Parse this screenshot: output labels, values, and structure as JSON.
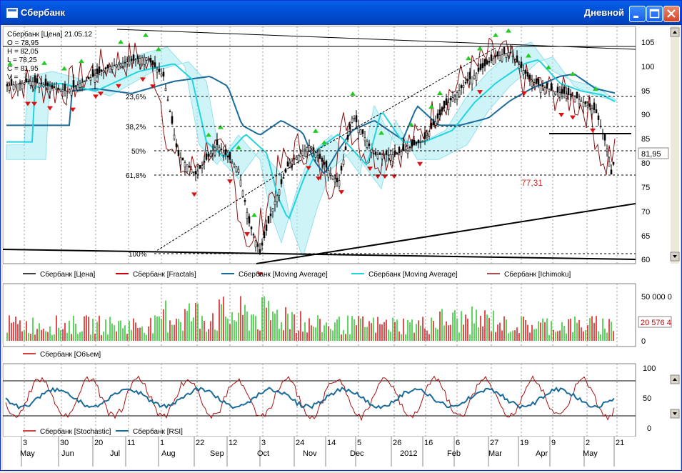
{
  "window": {
    "title": "Сбербанк",
    "interval": "Дневной",
    "buttons": [
      "minimize-button",
      "maximize-button",
      "close-button"
    ]
  },
  "price_panel": {
    "info_lines": [
      "Сбербанк [Цена] 21.05.12",
      "O = 78,95",
      "H = 82,05",
      "L = 78,25",
      "C = 81,95",
      "V = "
    ],
    "y_ticks": [
      "105",
      "100",
      "95",
      "90",
      "85",
      "80",
      "75",
      "70",
      "65",
      "60"
    ],
    "last_price": "81,95",
    "annotation": "77,31",
    "fib_labels": [
      "23,6%",
      "38,2%",
      "50%",
      "61,8%",
      "100%"
    ],
    "colors": {
      "up": "#000000",
      "down": "#000000",
      "fractal_up": "#22cc22",
      "fractal_down": "#dd1111",
      "ma_slow": "#1a6b9a",
      "ma_fast": "#20d4e0",
      "ichimoku": "#8b1414",
      "cloud": "#5fd4e8"
    }
  },
  "legend_price": [
    {
      "label": "Сбербанк [Цена]",
      "color": "#000000"
    },
    {
      "label": "Сбербанк [Fractals]",
      "color": "#cc0000"
    },
    {
      "label": "Сбербанк [Moving Average]",
      "color": "#1a6b9a"
    },
    {
      "label": "Сбербанк [Moving Average]",
      "color": "#20d4e0"
    },
    {
      "label": "Сбербанк [Ichimoku]",
      "color": "#8b1414"
    }
  ],
  "volume_panel": {
    "y_ticks": [
      "50 000 0",
      "0"
    ],
    "last_value": "20 576 4",
    "legend": {
      "label": "Сбербанк [Объем]",
      "color": "#cc0000"
    }
  },
  "osc_panel": {
    "y_ticks": [
      "100",
      "50",
      "0"
    ],
    "legend": [
      {
        "label": "Сбербанк [Stochastic]",
        "color": "#cc0000"
      },
      {
        "label": "Сбербанк [RSI]",
        "color": "#1a6b9a"
      }
    ]
  },
  "date_axis": {
    "days": [
      "3",
      "30",
      "20",
      "11",
      "1",
      "22",
      "12",
      "3",
      "24",
      "14",
      "5",
      "26",
      "16",
      "6",
      "27",
      "19",
      "9",
      "2",
      "21"
    ],
    "months": [
      "May",
      "Jun",
      "Jul",
      "Aug",
      "Sep",
      "Oct",
      "Nov",
      "Dec",
      "2012",
      "Feb",
      "Mar",
      "Apr",
      "May"
    ]
  }
}
